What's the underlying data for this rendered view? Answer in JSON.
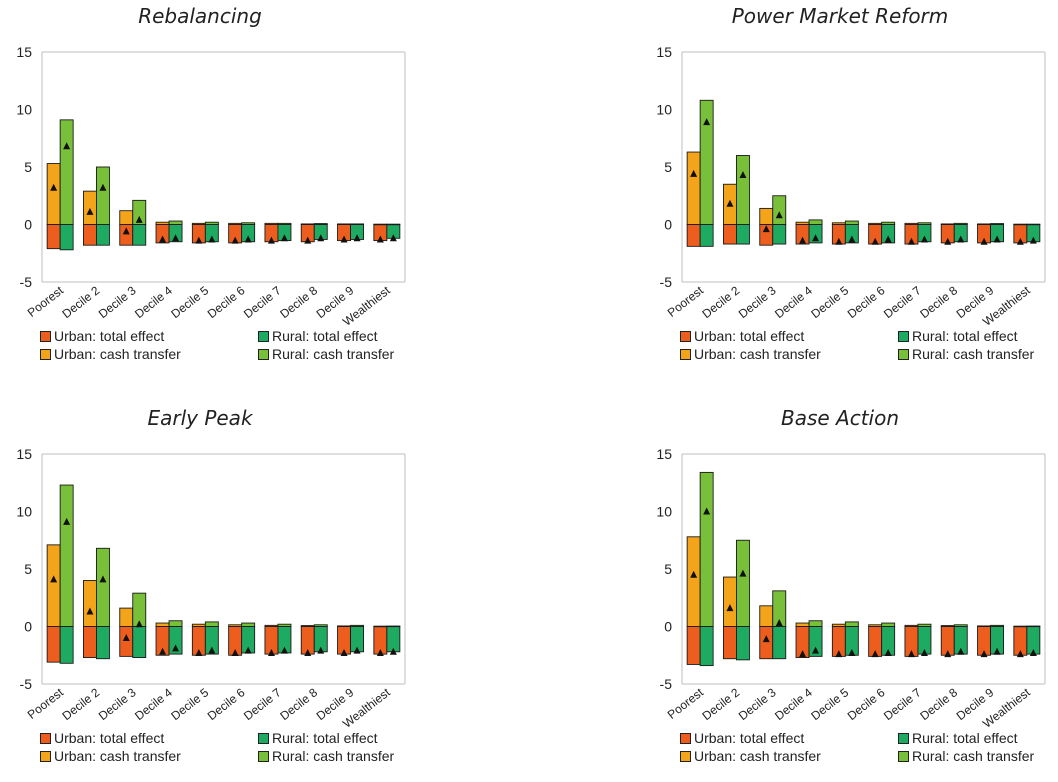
{
  "chart_data": [
    {
      "type": "bar",
      "title": "Rebalancing",
      "categories": [
        "Poorest",
        "Decile 2",
        "Decile 3",
        "Decile 4",
        "Decile 5",
        "Decile 6",
        "Decile 7",
        "Decile 8",
        "Decile 9",
        "Wealthiest"
      ],
      "ylim": [
        -5,
        15
      ],
      "yticks": [
        "-5",
        "0",
        "5",
        "10",
        "15"
      ],
      "grid": false,
      "legend_position": "bottom",
      "series": [
        {
          "name": "Urban: total effect",
          "values": [
            -2.1,
            -1.8,
            -1.8,
            -1.6,
            -1.6,
            -1.6,
            -1.5,
            -1.5,
            -1.4,
            -1.4
          ]
        },
        {
          "name": "Rural: total effect",
          "values": [
            -2.2,
            -1.8,
            -1.8,
            -1.5,
            -1.5,
            -1.5,
            -1.4,
            -1.3,
            -1.3,
            -1.2
          ]
        },
        {
          "name": "Urban: cash transfer",
          "values": [
            5.3,
            2.9,
            1.2,
            0.2,
            0.1,
            0.1,
            0.1,
            0.05,
            0.05,
            0.03
          ]
        },
        {
          "name": "Rural: cash transfer",
          "values": [
            9.1,
            5.0,
            2.1,
            0.3,
            0.2,
            0.15,
            0.1,
            0.08,
            0.05,
            0.03
          ]
        }
      ],
      "markers": {
        "urban": [
          3.2,
          1.1,
          -0.6,
          -1.3,
          -1.4,
          -1.4,
          -1.4,
          -1.4,
          -1.3,
          -1.3
        ],
        "rural": [
          6.8,
          3.2,
          0.4,
          -1.2,
          -1.3,
          -1.3,
          -1.2,
          -1.2,
          -1.2,
          -1.2
        ]
      }
    },
    {
      "type": "bar",
      "title": "Power Market Reform",
      "categories": [
        "Poorest",
        "Decile 2",
        "Decile 3",
        "Decile 4",
        "Decile 5",
        "Decile 6",
        "Decile 7",
        "Decile 8",
        "Decile 9",
        "Wealthiest"
      ],
      "ylim": [
        -5,
        15
      ],
      "yticks": [
        "-5",
        "0",
        "5",
        "10",
        "15"
      ],
      "grid": false,
      "legend_position": "bottom",
      "series": [
        {
          "name": "Urban: total effect",
          "values": [
            -1.9,
            -1.7,
            -1.8,
            -1.7,
            -1.7,
            -1.7,
            -1.7,
            -1.6,
            -1.6,
            -1.6
          ]
        },
        {
          "name": "Rural: total effect",
          "values": [
            -1.9,
            -1.7,
            -1.7,
            -1.6,
            -1.6,
            -1.6,
            -1.5,
            -1.5,
            -1.5,
            -1.5
          ]
        },
        {
          "name": "Urban: cash transfer",
          "values": [
            6.3,
            3.5,
            1.4,
            0.2,
            0.15,
            0.1,
            0.1,
            0.05,
            0.05,
            0.03
          ]
        },
        {
          "name": "Rural: cash transfer",
          "values": [
            10.8,
            6.0,
            2.5,
            0.4,
            0.3,
            0.2,
            0.15,
            0.1,
            0.08,
            0.03
          ]
        }
      ],
      "markers": {
        "urban": [
          4.4,
          1.8,
          -0.4,
          -1.4,
          -1.5,
          -1.5,
          -1.5,
          -1.5,
          -1.5,
          -1.5
        ],
        "rural": [
          8.9,
          4.3,
          0.8,
          -1.2,
          -1.3,
          -1.3,
          -1.3,
          -1.3,
          -1.3,
          -1.4
        ]
      }
    },
    {
      "type": "bar",
      "title": "Early Peak",
      "categories": [
        "Poorest",
        "Decile 2",
        "Decile 3",
        "Decile 4",
        "Decile 5",
        "Decile 6",
        "Decile 7",
        "Decile 8",
        "Decile 9",
        "Wealthiest"
      ],
      "ylim": [
        -5,
        15
      ],
      "yticks": [
        "-5",
        "0",
        "5",
        "10",
        "15"
      ],
      "grid": false,
      "legend_position": "bottom",
      "series": [
        {
          "name": "Urban: total effect",
          "values": [
            -3.1,
            -2.7,
            -2.6,
            -2.5,
            -2.5,
            -2.5,
            -2.4,
            -2.4,
            -2.4,
            -2.4
          ]
        },
        {
          "name": "Rural: total effect",
          "values": [
            -3.2,
            -2.8,
            -2.7,
            -2.4,
            -2.4,
            -2.3,
            -2.3,
            -2.2,
            -2.2,
            -2.2
          ]
        },
        {
          "name": "Urban: cash transfer",
          "values": [
            7.1,
            4.0,
            1.6,
            0.3,
            0.2,
            0.15,
            0.1,
            0.08,
            0.05,
            0.03
          ]
        },
        {
          "name": "Rural: cash transfer",
          "values": [
            12.3,
            6.8,
            2.9,
            0.5,
            0.4,
            0.3,
            0.2,
            0.15,
            0.1,
            0.04
          ]
        }
      ],
      "markers": {
        "urban": [
          4.1,
          1.3,
          -1.0,
          -2.2,
          -2.3,
          -2.3,
          -2.3,
          -2.3,
          -2.3,
          -2.3
        ],
        "rural": [
          9.1,
          4.1,
          0.2,
          -1.9,
          -2.1,
          -2.1,
          -2.1,
          -2.1,
          -2.1,
          -2.2
        ]
      }
    },
    {
      "type": "bar",
      "title": "Base Action",
      "categories": [
        "Poorest",
        "Decile 2",
        "Decile 3",
        "Decile 4",
        "Decile 5",
        "Decile 6",
        "Decile 7",
        "Decile 8",
        "Decile 9",
        "Wealthiest"
      ],
      "ylim": [
        -5,
        15
      ],
      "yticks": [
        "-5",
        "0",
        "5",
        "10",
        "15"
      ],
      "grid": false,
      "legend_position": "bottom",
      "series": [
        {
          "name": "Urban: total effect",
          "values": [
            -3.3,
            -2.8,
            -2.8,
            -2.7,
            -2.6,
            -2.6,
            -2.6,
            -2.5,
            -2.5,
            -2.5
          ]
        },
        {
          "name": "Rural: total effect",
          "values": [
            -3.4,
            -2.9,
            -2.8,
            -2.6,
            -2.5,
            -2.5,
            -2.4,
            -2.4,
            -2.4,
            -2.4
          ]
        },
        {
          "name": "Urban: cash transfer",
          "values": [
            7.8,
            4.3,
            1.8,
            0.3,
            0.2,
            0.15,
            0.1,
            0.08,
            0.05,
            0.03
          ]
        },
        {
          "name": "Rural: cash transfer",
          "values": [
            13.4,
            7.5,
            3.1,
            0.5,
            0.4,
            0.3,
            0.2,
            0.15,
            0.1,
            0.04
          ]
        }
      ],
      "markers": {
        "urban": [
          4.5,
          1.6,
          -1.1,
          -2.4,
          -2.4,
          -2.4,
          -2.4,
          -2.4,
          -2.4,
          -2.4
        ],
        "rural": [
          10.0,
          4.6,
          0.3,
          -2.1,
          -2.3,
          -2.3,
          -2.3,
          -2.2,
          -2.2,
          -2.3
        ]
      }
    }
  ],
  "colors": {
    "urban_total": "#ED5E1E",
    "rural_total": "#1EAA60",
    "urban_cash": "#F4A41A",
    "rural_cash": "#79C03A",
    "outline": "#1A1A1A",
    "axis": "#BFBFBF"
  }
}
